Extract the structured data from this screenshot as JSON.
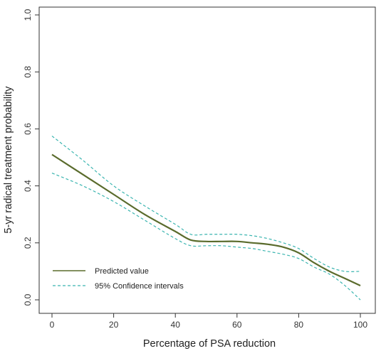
{
  "chart_data": {
    "type": "line",
    "xlabel": "Percentage of PSA reduction",
    "ylabel": "5-yr radical treatment probability",
    "xlim": [
      0,
      100
    ],
    "ylim": [
      0,
      1.0
    ],
    "x_ticks": [
      "0",
      "20",
      "40",
      "60",
      "80",
      "100"
    ],
    "y_ticks": [
      "0.0",
      "0.2",
      "0.4",
      "0.6",
      "0.8",
      "1.0"
    ],
    "grid": false,
    "legend_position": "bottom-left",
    "series": [
      {
        "name": "Predicted value",
        "style": "solid",
        "color": "#5a6b2c",
        "x": [
          0,
          10,
          20,
          30,
          40,
          45,
          50,
          55,
          60,
          65,
          70,
          75,
          80,
          85,
          90,
          95,
          100
        ],
        "y": [
          0.51,
          0.44,
          0.37,
          0.3,
          0.24,
          0.21,
          0.205,
          0.205,
          0.205,
          0.2,
          0.195,
          0.185,
          0.165,
          0.13,
          0.1,
          0.075,
          0.05
        ]
      },
      {
        "name": "95% Confidence intervals",
        "style": "dashed",
        "color": "#3bb5b0",
        "x": [
          0,
          10,
          20,
          30,
          40,
          45,
          50,
          55,
          60,
          65,
          70,
          75,
          80,
          85,
          90,
          95,
          100
        ],
        "y": [
          0.575,
          0.49,
          0.4,
          0.33,
          0.265,
          0.23,
          0.23,
          0.23,
          0.23,
          0.225,
          0.215,
          0.2,
          0.18,
          0.145,
          0.115,
          0.1,
          0.1
        ]
      },
      {
        "name": "",
        "style": "dashed",
        "color": "#3bb5b0",
        "x": [
          0,
          10,
          20,
          30,
          40,
          45,
          50,
          55,
          60,
          65,
          70,
          75,
          80,
          85,
          90,
          95,
          100
        ],
        "y": [
          0.445,
          0.4,
          0.345,
          0.28,
          0.215,
          0.19,
          0.19,
          0.19,
          0.185,
          0.18,
          0.17,
          0.16,
          0.145,
          0.115,
          0.09,
          0.05,
          0.0
        ]
      }
    ],
    "legend": [
      {
        "label": "Predicted value",
        "style": "solid",
        "color": "#5a6b2c"
      },
      {
        "label": "95% Confidence intervals",
        "style": "dashed",
        "color": "#3bb5b0"
      }
    ]
  }
}
